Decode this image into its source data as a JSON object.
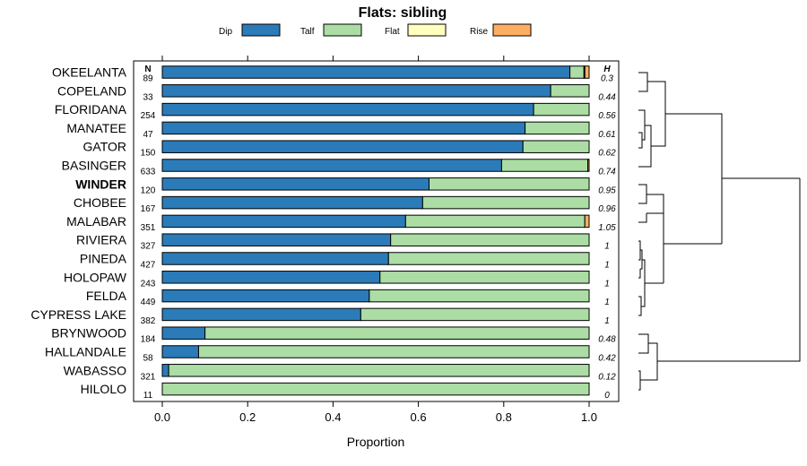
{
  "chart_data": {
    "type": "bar",
    "stacked": true,
    "orientation": "horizontal",
    "title": "Flats: sibling",
    "xlabel": "Proportion",
    "ylabel": "",
    "xlim": [
      0,
      1
    ],
    "xticks": [
      "0.0",
      "0.2",
      "0.4",
      "0.6",
      "0.8",
      "1.0"
    ],
    "n_header": "N",
    "h_header": "H",
    "bold_category": "WINDER",
    "legend_position": "top",
    "categories": [
      "OKEELANTA",
      "COPELAND",
      "FLORIDANA",
      "MANATEE",
      "GATOR",
      "BASINGER",
      "WINDER",
      "CHOBEE",
      "MALABAR",
      "RIVIERA",
      "PINEDA",
      "HOLOPAW",
      "FELDA",
      "CYPRESS LAKE",
      "BRYNWOOD",
      "HALLANDALE",
      "WABASSO",
      "HILOLO"
    ],
    "n_values": [
      "89",
      "33",
      "254",
      "47",
      "150",
      "633",
      "120",
      "167",
      "351",
      "327",
      "427",
      "243",
      "449",
      "382",
      "184",
      "58",
      "321",
      "11"
    ],
    "h_values": [
      "0.3",
      "0.44",
      "0.56",
      "0.61",
      "0.62",
      "0.74",
      "0.95",
      "0.96",
      "1.05",
      "1",
      "1",
      "1",
      "1",
      "1",
      "0.48",
      "0.42",
      "0.12",
      "0"
    ],
    "series": [
      {
        "name": "Dip",
        "color": "#2b7bb9",
        "values": [
          0.955,
          0.91,
          0.87,
          0.85,
          0.845,
          0.795,
          0.625,
          0.61,
          0.57,
          0.535,
          0.53,
          0.51,
          0.485,
          0.465,
          0.1,
          0.085,
          0.015,
          0.0
        ]
      },
      {
        "name": "Talf",
        "color": "#abdda4",
        "values": [
          0.033,
          0.09,
          0.13,
          0.15,
          0.155,
          0.202,
          0.375,
          0.39,
          0.42,
          0.465,
          0.47,
          0.49,
          0.515,
          0.535,
          0.9,
          0.915,
          0.985,
          1.0
        ]
      },
      {
        "name": "Flat",
        "color": "#ffffbf",
        "values": [
          0.002,
          0,
          0,
          0,
          0,
          0,
          0,
          0,
          0,
          0,
          0,
          0,
          0,
          0,
          0,
          0,
          0,
          0
        ]
      },
      {
        "name": "Rise",
        "color": "#fdae61",
        "values": [
          0.01,
          0,
          0,
          0,
          0,
          0.003,
          0,
          0,
          0.01,
          0,
          0,
          0,
          0,
          0,
          0,
          0,
          0,
          0
        ]
      }
    ]
  }
}
